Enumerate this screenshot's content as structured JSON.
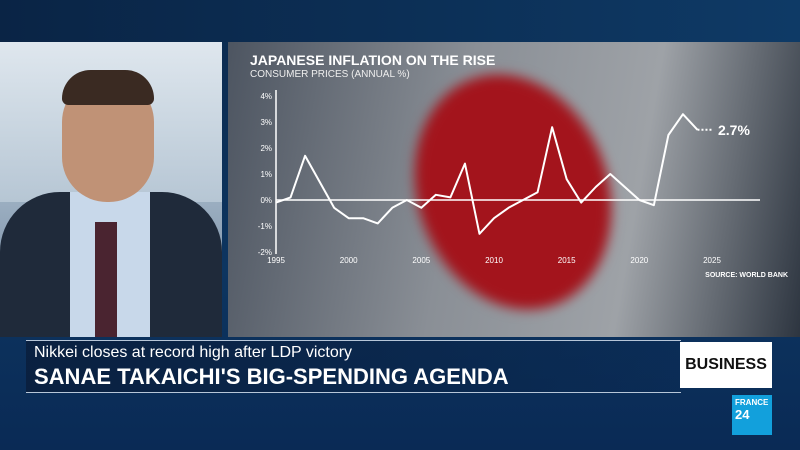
{
  "lower_third": {
    "subtitle": "Nikkei closes at record high after LDP victory",
    "headline": "SANAE TAKAICHI'S BIG-SPENDING AGENDA"
  },
  "section_badge": "BUSINESS",
  "logo": {
    "line1": "FRANCE",
    "line2": "24"
  },
  "colors": {
    "line": "#ffffff",
    "flag_red": "#a3141c",
    "logo_blue": "#12a0dc"
  },
  "chart_data": {
    "type": "line",
    "title": "JAPANESE INFLATION ON THE RISE",
    "subtitle": "CONSUMER PRICES (ANNUAL %)",
    "source": "SOURCE: WORLD BANK",
    "x": [
      1995,
      1996,
      1997,
      1998,
      1999,
      2000,
      2001,
      2002,
      2003,
      2004,
      2005,
      2006,
      2007,
      2008,
      2009,
      2010,
      2011,
      2012,
      2013,
      2014,
      2015,
      2016,
      2017,
      2018,
      2019,
      2020,
      2021,
      2022,
      2023,
      2024
    ],
    "values": [
      -0.1,
      0.1,
      1.7,
      0.7,
      -0.3,
      -0.7,
      -0.7,
      -0.9,
      -0.3,
      0.0,
      -0.3,
      0.2,
      0.1,
      1.4,
      -1.3,
      -0.7,
      -0.3,
      0.0,
      0.3,
      2.8,
      0.8,
      -0.1,
      0.5,
      1.0,
      0.5,
      0.0,
      -0.2,
      2.5,
      3.3,
      2.7
    ],
    "projection": {
      "x": [
        2024,
        2025
      ],
      "values": [
        2.7,
        2.7
      ]
    },
    "end_label": "2.7%",
    "xticks": [
      "1995",
      "2000",
      "2005",
      "2010",
      "2015",
      "2020",
      "2025"
    ],
    "yticks": [
      "4%",
      "3%",
      "2%",
      "1%",
      "0%",
      "-1%",
      "-2%"
    ],
    "ylim": [
      -2,
      4
    ],
    "xlim": [
      1995,
      2025
    ]
  }
}
